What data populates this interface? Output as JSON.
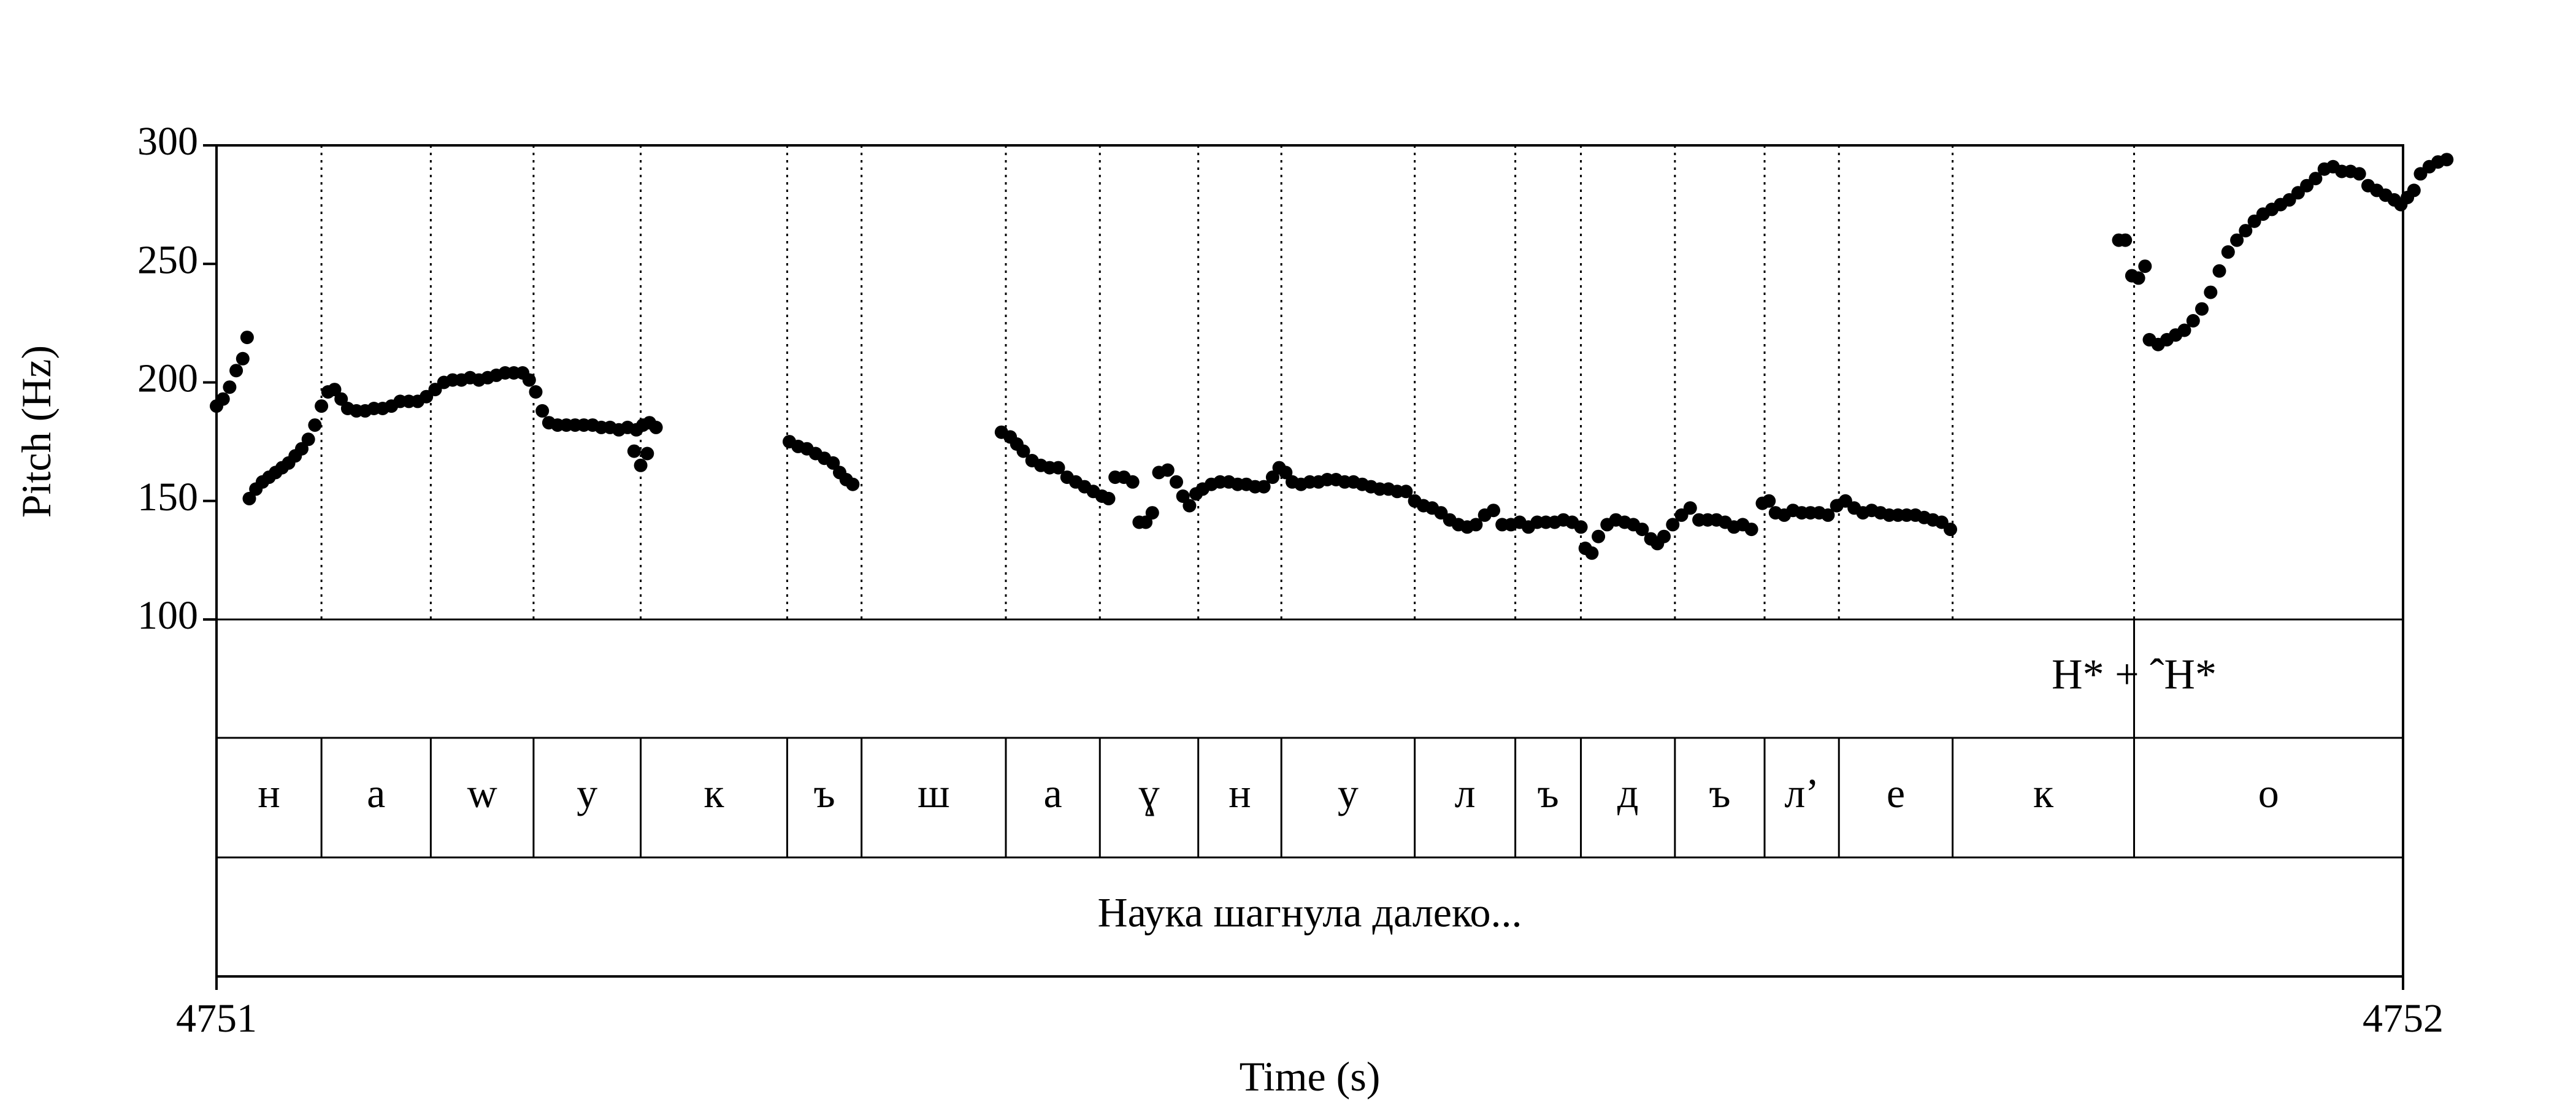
{
  "chart_data": {
    "type": "scatter",
    "xlabel": "Time (s)",
    "ylabel": "Pitch (Hz)",
    "xlim": [
      4751,
      4752
    ],
    "ylim": [
      100,
      300
    ],
    "x_ticks": [
      "4751",
      "4752"
    ],
    "y_ticks": [
      300,
      250,
      200,
      150,
      100
    ],
    "y_tick_labels": [
      "300",
      "250",
      "200",
      "150",
      "100"
    ],
    "point_color": "#000000",
    "segment_boundaries": [
      4751.048,
      4751.098,
      4751.145,
      4751.194,
      4751.261,
      4751.295,
      4751.361,
      4751.404,
      4751.449,
      4751.487,
      4751.548,
      4751.594,
      4751.624,
      4751.667,
      4751.708,
      4751.742,
      4751.794,
      4751.877
    ],
    "segments": [
      "н",
      "а",
      "w",
      "у",
      "к",
      "ъ",
      "ш",
      "а",
      "ɣ",
      "н",
      "у",
      "л",
      "ъ",
      "д",
      "ъ",
      "л’",
      "е",
      "к",
      "о"
    ],
    "tone_label": "H* + ˆH*",
    "tone_boundary": 4751.877,
    "sentence": "Наука шагнула далеко...",
    "pitch_track": [
      [
        4751.0,
        190
      ],
      [
        4751.003,
        193
      ],
      [
        4751.006,
        198
      ],
      [
        4751.009,
        205
      ],
      [
        4751.012,
        210
      ],
      [
        4751.014,
        219
      ],
      [
        4751.015,
        151
      ],
      [
        4751.018,
        155
      ],
      [
        4751.021,
        158
      ],
      [
        4751.024,
        160
      ],
      [
        4751.027,
        162
      ],
      [
        4751.03,
        164
      ],
      [
        4751.033,
        166
      ],
      [
        4751.036,
        169
      ],
      [
        4751.039,
        172
      ],
      [
        4751.042,
        176
      ],
      [
        4751.045,
        182
      ],
      [
        4751.048,
        190
      ],
      [
        4751.051,
        196
      ],
      [
        4751.054,
        197
      ],
      [
        4751.057,
        193
      ],
      [
        4751.06,
        189
      ],
      [
        4751.064,
        188
      ],
      [
        4751.068,
        188
      ],
      [
        4751.072,
        189
      ],
      [
        4751.076,
        189
      ],
      [
        4751.08,
        190
      ],
      [
        4751.084,
        192
      ],
      [
        4751.088,
        192
      ],
      [
        4751.092,
        192
      ],
      [
        4751.096,
        194
      ],
      [
        4751.1,
        197
      ],
      [
        4751.104,
        200
      ],
      [
        4751.108,
        201
      ],
      [
        4751.112,
        201
      ],
      [
        4751.116,
        202
      ],
      [
        4751.12,
        201
      ],
      [
        4751.124,
        202
      ],
      [
        4751.128,
        203
      ],
      [
        4751.132,
        204
      ],
      [
        4751.136,
        204
      ],
      [
        4751.14,
        204
      ],
      [
        4751.143,
        201
      ],
      [
        4751.146,
        196
      ],
      [
        4751.149,
        188
      ],
      [
        4751.152,
        183
      ],
      [
        4751.156,
        182
      ],
      [
        4751.16,
        182
      ],
      [
        4751.164,
        182
      ],
      [
        4751.168,
        182
      ],
      [
        4751.172,
        182
      ],
      [
        4751.176,
        181
      ],
      [
        4751.18,
        181
      ],
      [
        4751.184,
        180
      ],
      [
        4751.188,
        181
      ],
      [
        4751.192,
        180
      ],
      [
        4751.195,
        182
      ],
      [
        4751.198,
        183
      ],
      [
        4751.191,
        171
      ],
      [
        4751.194,
        165
      ],
      [
        4751.197,
        170
      ],
      [
        4751.201,
        181
      ],
      [
        4751.262,
        175
      ],
      [
        4751.266,
        173
      ],
      [
        4751.27,
        172
      ],
      [
        4751.274,
        170
      ],
      [
        4751.278,
        168
      ],
      [
        4751.282,
        166
      ],
      [
        4751.285,
        162
      ],
      [
        4751.288,
        159
      ],
      [
        4751.291,
        157
      ],
      [
        4751.359,
        179
      ],
      [
        4751.363,
        177
      ],
      [
        4751.366,
        174
      ],
      [
        4751.369,
        171
      ],
      [
        4751.373,
        167
      ],
      [
        4751.377,
        165
      ],
      [
        4751.381,
        164
      ],
      [
        4751.385,
        164
      ],
      [
        4751.389,
        160
      ],
      [
        4751.393,
        158
      ],
      [
        4751.397,
        156
      ],
      [
        4751.401,
        154
      ],
      [
        4751.405,
        152
      ],
      [
        4751.408,
        151
      ],
      [
        4751.411,
        160
      ],
      [
        4751.415,
        160
      ],
      [
        4751.419,
        158
      ],
      [
        4751.422,
        141
      ],
      [
        4751.425,
        141
      ],
      [
        4751.428,
        145
      ],
      [
        4751.431,
        162
      ],
      [
        4751.435,
        163
      ],
      [
        4751.439,
        158
      ],
      [
        4751.442,
        152
      ],
      [
        4751.445,
        148
      ],
      [
        4751.448,
        153
      ],
      [
        4751.451,
        155
      ],
      [
        4751.455,
        157
      ],
      [
        4751.459,
        158
      ],
      [
        4751.463,
        158
      ],
      [
        4751.467,
        157
      ],
      [
        4751.471,
        157
      ],
      [
        4751.475,
        156
      ],
      [
        4751.479,
        156
      ],
      [
        4751.483,
        160
      ],
      [
        4751.486,
        164
      ],
      [
        4751.489,
        162
      ],
      [
        4751.492,
        158
      ],
      [
        4751.496,
        157
      ],
      [
        4751.5,
        158
      ],
      [
        4751.504,
        158
      ],
      [
        4751.508,
        159
      ],
      [
        4751.512,
        159
      ],
      [
        4751.516,
        158
      ],
      [
        4751.52,
        158
      ],
      [
        4751.524,
        157
      ],
      [
        4751.528,
        156
      ],
      [
        4751.532,
        155
      ],
      [
        4751.536,
        155
      ],
      [
        4751.54,
        154
      ],
      [
        4751.544,
        154
      ],
      [
        4751.548,
        150
      ],
      [
        4751.552,
        148
      ],
      [
        4751.556,
        147
      ],
      [
        4751.56,
        145
      ],
      [
        4751.564,
        142
      ],
      [
        4751.568,
        140
      ],
      [
        4751.572,
        139
      ],
      [
        4751.576,
        140
      ],
      [
        4751.58,
        144
      ],
      [
        4751.584,
        146
      ],
      [
        4751.588,
        140
      ],
      [
        4751.592,
        140
      ],
      [
        4751.596,
        141
      ],
      [
        4751.6,
        139
      ],
      [
        4751.604,
        141
      ],
      [
        4751.608,
        141
      ],
      [
        4751.612,
        141
      ],
      [
        4751.616,
        142
      ],
      [
        4751.62,
        141
      ],
      [
        4751.624,
        139
      ],
      [
        4751.626,
        130
      ],
      [
        4751.629,
        128
      ],
      [
        4751.632,
        135
      ],
      [
        4751.636,
        140
      ],
      [
        4751.64,
        142
      ],
      [
        4751.644,
        141
      ],
      [
        4751.648,
        140
      ],
      [
        4751.652,
        138
      ],
      [
        4751.656,
        134
      ],
      [
        4751.659,
        132
      ],
      [
        4751.662,
        135
      ],
      [
        4751.666,
        140
      ],
      [
        4751.67,
        144
      ],
      [
        4751.674,
        147
      ],
      [
        4751.678,
        142
      ],
      [
        4751.682,
        142
      ],
      [
        4751.686,
        142
      ],
      [
        4751.69,
        141
      ],
      [
        4751.694,
        139
      ],
      [
        4751.698,
        140
      ],
      [
        4751.702,
        138
      ],
      [
        4751.707,
        149
      ],
      [
        4751.71,
        150
      ],
      [
        4751.713,
        145
      ],
      [
        4751.717,
        144
      ],
      [
        4751.721,
        146
      ],
      [
        4751.725,
        145
      ],
      [
        4751.729,
        145
      ],
      [
        4751.733,
        145
      ],
      [
        4751.737,
        144
      ],
      [
        4751.741,
        148
      ],
      [
        4751.745,
        150
      ],
      [
        4751.749,
        147
      ],
      [
        4751.753,
        145
      ],
      [
        4751.757,
        146
      ],
      [
        4751.761,
        145
      ],
      [
        4751.765,
        144
      ],
      [
        4751.769,
        144
      ],
      [
        4751.773,
        144
      ],
      [
        4751.777,
        144
      ],
      [
        4751.781,
        143
      ],
      [
        4751.785,
        142
      ],
      [
        4751.789,
        141
      ],
      [
        4751.793,
        138
      ],
      [
        4751.87,
        260
      ],
      [
        4751.873,
        260
      ],
      [
        4751.876,
        245
      ],
      [
        4751.879,
        244
      ],
      [
        4751.882,
        249
      ],
      [
        4751.884,
        218
      ],
      [
        4751.888,
        216
      ],
      [
        4751.892,
        218
      ],
      [
        4751.896,
        220
      ],
      [
        4751.9,
        222
      ],
      [
        4751.904,
        226
      ],
      [
        4751.908,
        231
      ],
      [
        4751.912,
        238
      ],
      [
        4751.916,
        247
      ],
      [
        4751.92,
        255
      ],
      [
        4751.924,
        260
      ],
      [
        4751.928,
        264
      ],
      [
        4751.932,
        268
      ],
      [
        4751.936,
        271
      ],
      [
        4751.94,
        273
      ],
      [
        4751.944,
        275
      ],
      [
        4751.948,
        277
      ],
      [
        4751.952,
        280
      ],
      [
        4751.956,
        283
      ],
      [
        4751.96,
        286
      ],
      [
        4751.964,
        290
      ],
      [
        4751.968,
        291
      ],
      [
        4751.972,
        289
      ],
      [
        4751.976,
        289
      ],
      [
        4751.98,
        288
      ],
      [
        4751.984,
        283
      ],
      [
        4751.988,
        281
      ],
      [
        4751.992,
        279
      ],
      [
        4751.996,
        277
      ],
      [
        4751.999,
        275
      ],
      [
        4752.002,
        278
      ],
      [
        4752.005,
        281
      ],
      [
        4752.008,
        288
      ],
      [
        4752.012,
        291
      ],
      [
        4752.016,
        293
      ],
      [
        4752.02,
        294
      ]
    ]
  }
}
